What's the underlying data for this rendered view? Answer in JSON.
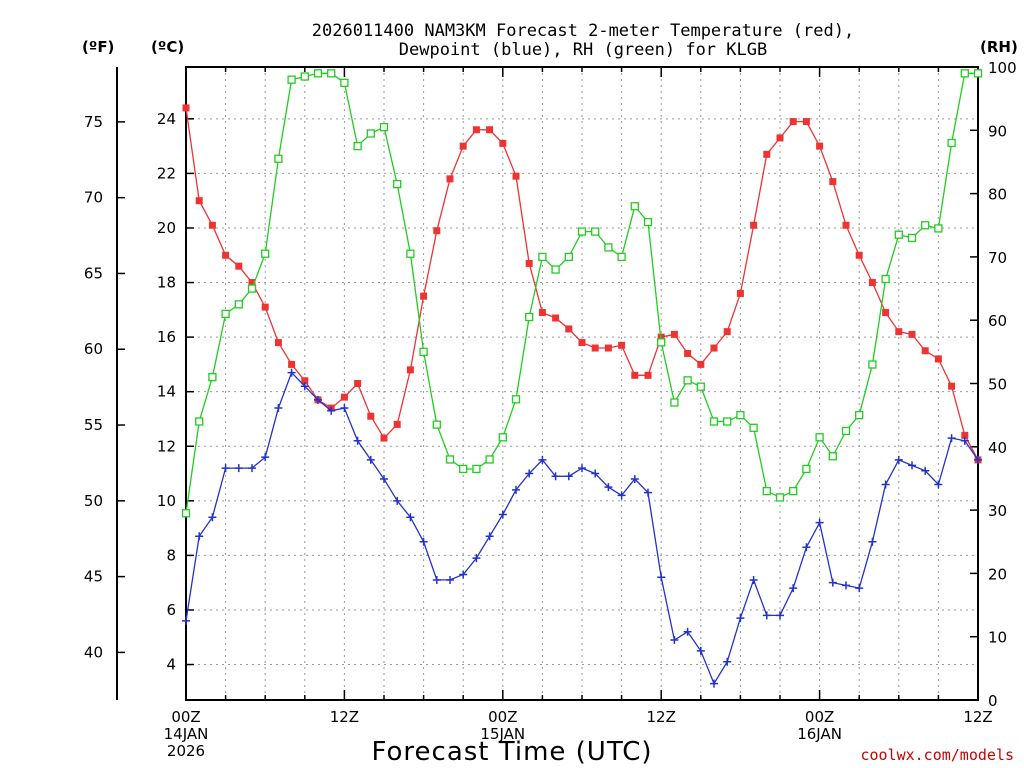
{
  "chart_data": {
    "type": "line",
    "title_line1": "2026011400 NAM3KM Forecast 2-meter Temperature (red),",
    "title_line2": "Dewpoint (blue), RH (green) for KLGB",
    "unit_f": "(ºF)",
    "unit_c": "(ºC)",
    "unit_rh": "(RH)",
    "xlabel": "Forecast Time (UTC)",
    "credit": "coolwx.com/models",
    "credit_color": "#cc0000",
    "x_ticks": [
      {
        "hour": 0,
        "lines": [
          "00Z",
          "14JAN",
          "2026"
        ]
      },
      {
        "hour": 12,
        "lines": [
          "12Z"
        ]
      },
      {
        "hour": 24,
        "lines": [
          "00Z",
          "15JAN"
        ]
      },
      {
        "hour": 36,
        "lines": [
          "12Z"
        ]
      },
      {
        "hour": 48,
        "lines": [
          "00Z",
          "16JAN"
        ]
      },
      {
        "hour": 60,
        "lines": [
          "12Z"
        ]
      }
    ],
    "x_range_hours": [
      0,
      60
    ],
    "c_range": [
      2.7,
      25.9
    ],
    "c_ticks": [
      4,
      6,
      8,
      10,
      12,
      14,
      16,
      18,
      20,
      22,
      24
    ],
    "f_ticks": [
      40,
      45,
      50,
      55,
      60,
      65,
      70,
      75
    ],
    "rh_range": [
      0,
      100
    ],
    "rh_ticks": [
      0,
      10,
      20,
      30,
      40,
      50,
      60,
      70,
      80,
      90,
      100
    ],
    "grid": true,
    "series": [
      {
        "name": "2-meter Temperature (°C)",
        "color": "#ee3333",
        "marker": "filled-square",
        "axis": "celsius",
        "x": [
          0,
          1,
          2,
          3,
          4,
          5,
          6,
          7,
          8,
          9,
          10,
          11,
          12,
          13,
          14,
          15,
          16,
          17,
          18,
          19,
          20,
          21,
          22,
          23,
          24,
          25,
          26,
          27,
          28,
          29,
          30,
          31,
          32,
          33,
          34,
          35,
          36,
          37,
          38,
          39,
          40,
          41,
          42,
          43,
          44,
          45,
          46,
          47,
          48,
          49,
          50,
          51,
          52,
          53,
          54,
          55,
          56,
          57,
          58,
          59,
          60
        ],
        "values": [
          24.4,
          21.0,
          20.1,
          19.0,
          18.6,
          18.0,
          17.1,
          15.8,
          15.0,
          14.4,
          13.7,
          13.4,
          13.8,
          14.3,
          13.1,
          12.3,
          12.8,
          14.8,
          17.5,
          19.9,
          21.8,
          23.0,
          23.6,
          23.6,
          23.1,
          21.9,
          18.7,
          16.9,
          16.7,
          16.3,
          15.8,
          15.6,
          15.6,
          15.7,
          14.6,
          14.6,
          16.0,
          16.1,
          15.4,
          15.0,
          15.6,
          16.2,
          17.6,
          20.1,
          22.7,
          23.3,
          23.9,
          23.9,
          23.0,
          21.7,
          20.1,
          19.0,
          18.0,
          16.9,
          16.2,
          16.1,
          15.5,
          15.2,
          14.2,
          12.4,
          11.5
        ]
      },
      {
        "name": "2-meter Dewpoint (°C)",
        "color": "#2233cc",
        "marker": "plus",
        "axis": "celsius",
        "x": [
          0,
          1,
          2,
          3,
          4,
          5,
          6,
          7,
          8,
          9,
          10,
          11,
          12,
          13,
          14,
          15,
          16,
          17,
          18,
          19,
          20,
          21,
          22,
          23,
          24,
          25,
          26,
          27,
          28,
          29,
          30,
          31,
          32,
          33,
          34,
          35,
          36,
          37,
          38,
          39,
          40,
          41,
          42,
          43,
          44,
          45,
          46,
          47,
          48,
          49,
          50,
          51,
          52,
          53,
          54,
          55,
          56,
          57,
          58,
          59,
          60
        ],
        "values": [
          5.6,
          8.7,
          9.4,
          11.2,
          11.2,
          11.2,
          11.6,
          13.4,
          14.7,
          14.2,
          13.7,
          13.3,
          13.4,
          12.2,
          11.5,
          10.8,
          10.0,
          9.4,
          8.5,
          7.1,
          7.1,
          7.3,
          7.9,
          8.7,
          9.5,
          10.4,
          11.0,
          11.5,
          10.9,
          10.9,
          11.2,
          11.0,
          10.5,
          10.2,
          10.8,
          10.3,
          7.2,
          4.9,
          5.2,
          4.5,
          3.3,
          4.1,
          5.7,
          7.1,
          5.8,
          5.8,
          6.8,
          8.3,
          9.2,
          7.0,
          6.9,
          6.8,
          8.5,
          10.6,
          11.5,
          11.3,
          11.1,
          10.6,
          12.3,
          12.2,
          11.5
        ]
      },
      {
        "name": "Relative Humidity (%)",
        "color": "#22cc22",
        "marker": "open-square",
        "axis": "rh",
        "x": [
          0,
          1,
          2,
          3,
          4,
          5,
          6,
          7,
          8,
          9,
          10,
          11,
          12,
          13,
          14,
          15,
          16,
          17,
          18,
          19,
          20,
          21,
          22,
          23,
          24,
          25,
          26,
          27,
          28,
          29,
          30,
          31,
          32,
          33,
          34,
          35,
          36,
          37,
          38,
          39,
          40,
          41,
          42,
          43,
          44,
          45,
          46,
          47,
          48,
          49,
          50,
          51,
          52,
          53,
          54,
          55,
          56,
          57,
          58,
          59,
          60
        ],
        "values": [
          29.5,
          44.0,
          51.0,
          61.0,
          62.5,
          65.0,
          70.5,
          85.5,
          98.0,
          98.5,
          99.0,
          99.0,
          97.5,
          87.5,
          89.5,
          90.5,
          81.5,
          70.5,
          55.0,
          43.5,
          38.0,
          36.5,
          36.5,
          38.0,
          41.5,
          47.5,
          60.5,
          70.0,
          68.0,
          70.0,
          74.0,
          74.0,
          71.5,
          70.0,
          78.0,
          75.5,
          56.5,
          47.0,
          50.5,
          49.5,
          44.0,
          44.0,
          45.0,
          43.0,
          33.0,
          32.0,
          33.0,
          36.5,
          41.5,
          38.5,
          42.5,
          45.0,
          53.0,
          66.5,
          73.5,
          73.0,
          75.0,
          74.5,
          88.0,
          99.0,
          99.0
        ]
      }
    ]
  }
}
